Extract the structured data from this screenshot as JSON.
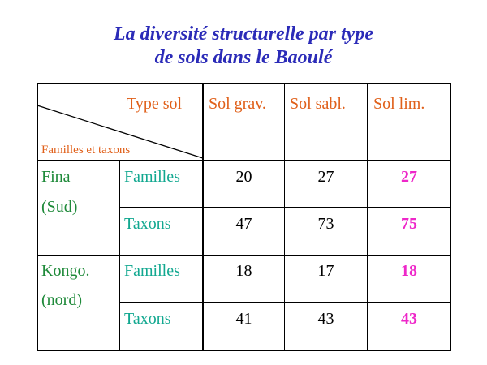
{
  "title": {
    "line1": "La diversité structurelle par type",
    "line2": "de sols dans le Baoulé"
  },
  "table": {
    "corner": {
      "top_label": "Type sol",
      "bottom_label": "Familles et taxons"
    },
    "columns": [
      "Sol grav.",
      "Sol sabl.",
      "Sol lim."
    ],
    "groups": [
      {
        "name_line1": "Fina",
        "name_line2": "(Sud)",
        "rows": [
          {
            "label": "Familles",
            "values": [
              "20",
              "27",
              "27"
            ]
          },
          {
            "label": "Taxons",
            "values": [
              "47",
              "73",
              "75"
            ]
          }
        ]
      },
      {
        "name_line1": "Kongo.",
        "name_line2": "(nord)",
        "rows": [
          {
            "label": "Familles",
            "values": [
              "18",
              "17",
              "18"
            ]
          },
          {
            "label": "Taxons",
            "values": [
              "41",
              "43",
              "43"
            ]
          }
        ]
      }
    ]
  },
  "colors": {
    "title": "#2b2bb8",
    "header": "#e0601a",
    "group_names": "#1f8a3a",
    "row_labels": "#12a890",
    "highlight_values": "#ee27c9"
  }
}
